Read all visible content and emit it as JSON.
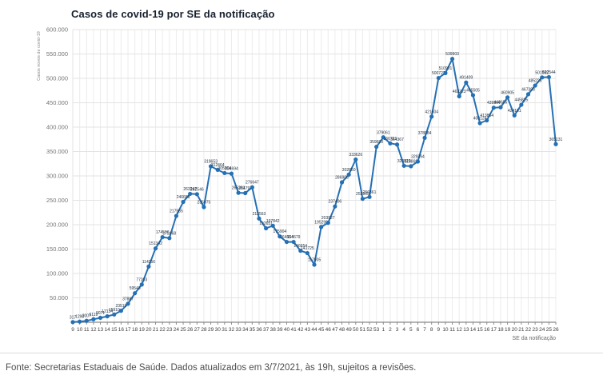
{
  "page": {
    "title": "Casos de covid-19 por SE da notificação",
    "footer": "Fonte: Secretarias Estaduais de Saúde. Dados atualizados em 3/7/2021, às 19h, sujeitos a revisões."
  },
  "colors": {
    "line": "#2570b4",
    "marker": "#2570b4",
    "grid_vertical": "#ececec",
    "grid_horizontal": "#e3e3e3",
    "axis": "#8a8a8a",
    "tick_label": "#3c3c3c",
    "ytick_label": "#757575",
    "axis_title": "#8a8a8a",
    "data_label": "#233140"
  },
  "chart_data": {
    "type": "line",
    "title": "Casos de covid-19 por SE da notificação",
    "xlabel": "SE da notificação",
    "ylabel": "Casos novos de covid-19",
    "ylim": [
      0,
      600000
    ],
    "ytick_step": 50000,
    "grid": true,
    "legend": "none",
    "marker": "circle",
    "data_labels": true,
    "categories": [
      "9",
      "10",
      "11",
      "12",
      "13",
      "14",
      "15",
      "16",
      "17",
      "18",
      "19",
      "20",
      "21",
      "22",
      "23",
      "24",
      "25",
      "26",
      "27",
      "28",
      "29",
      "30",
      "31",
      "32",
      "33",
      "34",
      "35",
      "36",
      "37",
      "38",
      "39",
      "40",
      "41",
      "42",
      "43",
      "44",
      "45",
      "46",
      "47",
      "48",
      "49",
      "50",
      "51",
      "52",
      "53",
      "1",
      "2",
      "3",
      "4",
      "5",
      "6",
      "7",
      "8",
      "9",
      "10",
      "11",
      "12",
      "13",
      "14",
      "15",
      "16",
      "17",
      "18",
      "19",
      "20",
      "21",
      "22",
      "23",
      "24",
      "25",
      "26"
    ],
    "values": [
      317,
      1290,
      3007,
      6119,
      9071,
      12134,
      15910,
      23519,
      37887,
      59543,
      77203,
      114256,
      151342,
      174506,
      172468,
      217965,
      246688,
      263247,
      262546,
      235975,
      319653,
      312464,
      305804,
      304694,
      265391,
      264791,
      276647,
      212563,
      192651,
      197842,
      175904,
      164654,
      164679,
      146654,
      141725,
      117905,
      195290,
      203927,
      237406,
      286905,
      302650,
      333626,
      252965,
      256861,
      359693,
      379061,
      366721,
      364367,
      320829,
      319869,
      329394,
      378084,
      421604,
      500722,
      510901,
      539903,
      463223,
      491409,
      465505,
      408124,
      413864,
      439864,
      440655,
      460905,
      424161,
      445825,
      467393,
      485225,
      501932,
      502544,
      365131
    ]
  }
}
